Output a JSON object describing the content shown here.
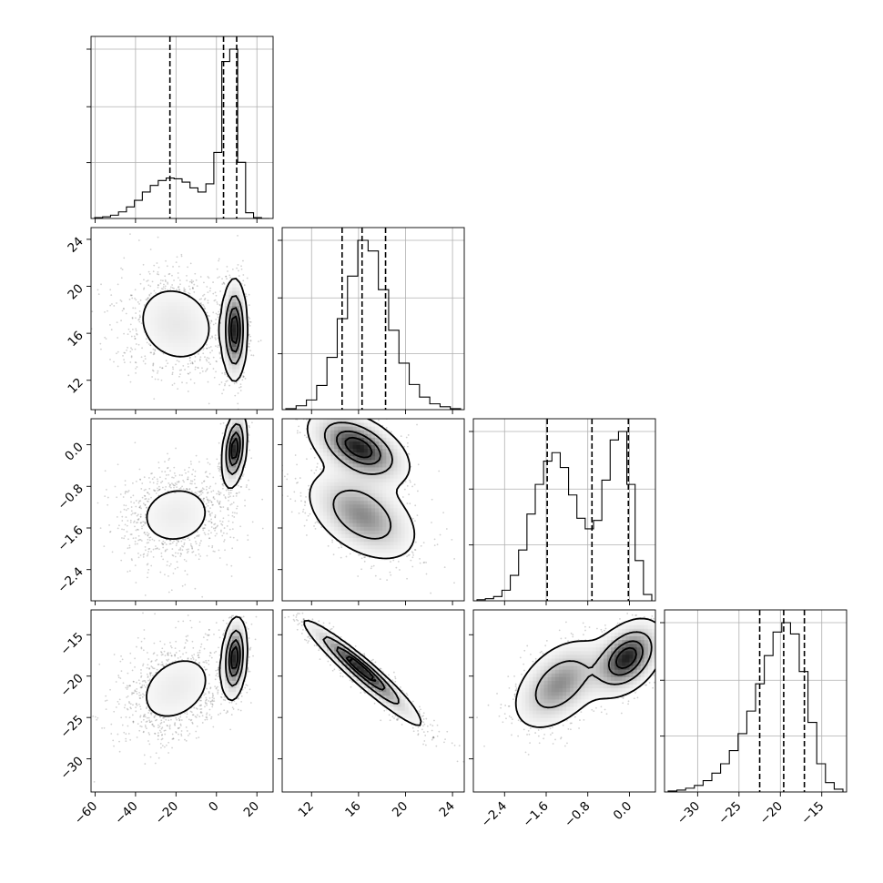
{
  "chart_data": {
    "type": "corner",
    "dimensions": [
      {
        "range": [
          -62,
          28
        ],
        "ticks": [
          -60,
          -40,
          -20,
          0,
          20
        ],
        "tick_labels": [
          "−60",
          "−40",
          "−20",
          "0",
          "20"
        ],
        "quantiles": [
          -23,
          3.5,
          10
        ]
      },
      {
        "range": [
          9.5,
          25
        ],
        "ticks": [
          12,
          16,
          20,
          24
        ],
        "tick_labels": [
          "12",
          "16",
          "20",
          "24"
        ],
        "quantiles": [
          14.6,
          16.3,
          18.3
        ]
      },
      {
        "range": [
          -3.0,
          0.5
        ],
        "ticks": [
          -2.4,
          -1.6,
          -0.8,
          0.0
        ],
        "tick_labels": [
          "−2.4",
          "−1.6",
          "−0.8",
          "0.0"
        ],
        "quantiles": [
          -1.58,
          -0.72,
          -0.02
        ]
      },
      {
        "range": [
          -34,
          -12
        ],
        "ticks": [
          -30,
          -25,
          -20,
          -15
        ],
        "tick_labels": [
          "−30",
          "−25",
          "−20",
          "−15"
        ],
        "quantiles": [
          -22.5,
          -19.6,
          -17.1
        ]
      }
    ],
    "histograms": [
      {
        "dim": 0,
        "peak": 205,
        "counts": [
          1,
          2,
          4,
          8,
          14,
          22,
          32,
          40,
          46,
          49,
          48,
          44,
          37,
          32,
          42,
          80,
          190,
          205,
          68,
          7,
          1,
          0
        ]
      },
      {
        "dim": 1,
        "peak": 175,
        "counts": [
          1,
          4,
          10,
          25,
          54,
          94,
          138,
          175,
          164,
          124,
          82,
          48,
          26,
          13,
          6,
          3,
          1
        ]
      },
      {
        "dim": 2,
        "peak": 160,
        "counts": [
          1,
          2,
          4,
          10,
          24,
          48,
          82,
          110,
          132,
          140,
          126,
          100,
          78,
          68,
          76,
          114,
          152,
          160,
          110,
          38,
          6
        ]
      },
      {
        "dim": 3,
        "peak": 180,
        "counts": [
          1,
          2,
          4,
          7,
          12,
          20,
          30,
          44,
          62,
          86,
          115,
          145,
          170,
          180,
          168,
          128,
          74,
          30,
          10,
          3
        ]
      }
    ],
    "pairs": [
      {
        "x": 0,
        "y": 1,
        "modes": [
          {
            "w": 0.55,
            "mx": -20,
            "my": 16.8,
            "sx": 14,
            "sy": 2.4,
            "rho": -0.15
          },
          {
            "w": 0.45,
            "mx": 9,
            "my": 16.3,
            "sx": 3,
            "sy": 2.1,
            "rho": 0
          }
        ]
      },
      {
        "x": 0,
        "y": 2,
        "modes": [
          {
            "w": 0.55,
            "mx": -20,
            "my": -1.35,
            "sx": 14,
            "sy": 0.45,
            "rho": 0.1
          },
          {
            "w": 0.45,
            "mx": 9,
            "my": -0.08,
            "sx": 3,
            "sy": 0.35,
            "rho": 0.3
          }
        ]
      },
      {
        "x": 0,
        "y": 3,
        "modes": [
          {
            "w": 0.55,
            "mx": -20,
            "my": -21.5,
            "sx": 14,
            "sy": 3.2,
            "rho": 0.3
          },
          {
            "w": 0.45,
            "mx": 9,
            "my": -17.8,
            "sx": 3,
            "sy": 2.4,
            "rho": 0.2
          }
        ]
      },
      {
        "x": 1,
        "y": 2,
        "modes": [
          {
            "w": 0.5,
            "mx": 16.3,
            "my": -1.35,
            "sx": 2.4,
            "sy": 0.45,
            "rho": -0.45
          },
          {
            "w": 0.5,
            "mx": 16.0,
            "my": -0.05,
            "sx": 2.1,
            "sy": 0.35,
            "rho": -0.5
          }
        ]
      },
      {
        "x": 1,
        "y": 3,
        "modes": [
          {
            "w": 0.5,
            "mx": 16.8,
            "my": -20.5,
            "sx": 2.6,
            "sy": 3.2,
            "rho": -0.96
          },
          {
            "w": 0.5,
            "mx": 16.0,
            "my": -18.6,
            "sx": 2.2,
            "sy": 2.6,
            "rho": -0.96
          }
        ]
      },
      {
        "x": 2,
        "y": 3,
        "modes": [
          {
            "w": 0.5,
            "mx": -1.35,
            "my": -21.0,
            "sx": 0.45,
            "sy": 2.8,
            "rho": 0.45
          },
          {
            "w": 0.5,
            "mx": -0.05,
            "my": -17.8,
            "sx": 0.35,
            "sy": 2.3,
            "rho": 0.4
          }
        ]
      }
    ],
    "contour_levels": [
      0.118,
      0.393,
      0.675,
      0.865
    ],
    "grid": true,
    "title": "",
    "xlabel": "",
    "ylabel": ""
  }
}
